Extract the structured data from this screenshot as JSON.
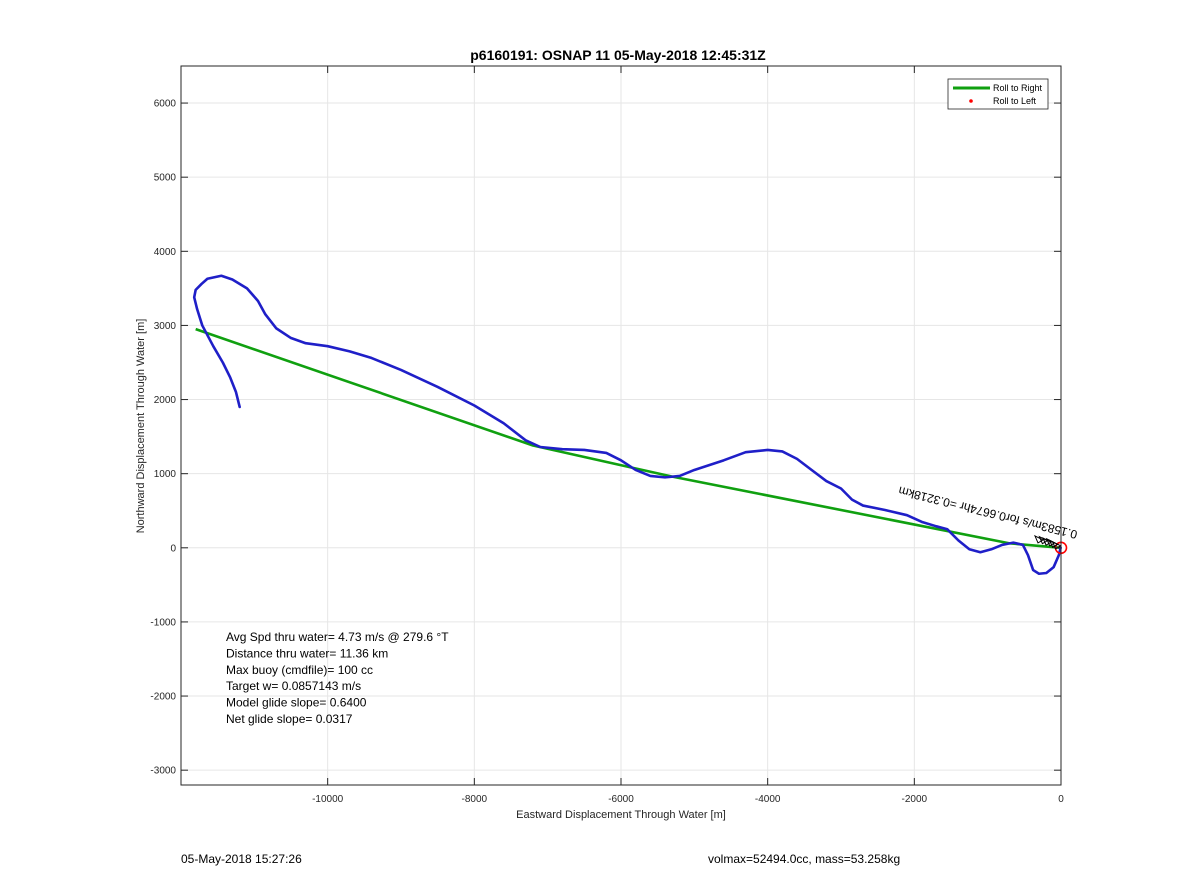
{
  "chart_data": {
    "type": "line",
    "title": "p6160191: OSNAP 11 05-May-2018 12:45:31Z",
    "xlabel": "Eastward Displacement Through Water [m]",
    "ylabel": "Northward Displacement Through Water [m]",
    "xlim": [
      -12000,
      0
    ],
    "ylim": [
      -3200,
      6500
    ],
    "xticks": [
      -10000,
      -8000,
      -6000,
      -4000,
      -2000,
      0
    ],
    "yticks": [
      -3000,
      -2000,
      -1000,
      0,
      1000,
      2000,
      3000,
      4000,
      5000,
      6000
    ],
    "grid": true,
    "legend": {
      "placement": "top-right",
      "entries": [
        {
          "label": "Roll to Right",
          "color": "#10a010",
          "style": "line"
        },
        {
          "label": "Roll to Left",
          "color": "#ff0000",
          "style": "dot"
        }
      ]
    },
    "series": [
      {
        "name": "",
        "color": "#1f1fc8",
        "points": [
          [
            -11200,
            1900
          ],
          [
            -11250,
            2100
          ],
          [
            -11330,
            2300
          ],
          [
            -11430,
            2500
          ],
          [
            -11560,
            2720
          ],
          [
            -11710,
            3000
          ],
          [
            -11780,
            3220
          ],
          [
            -11820,
            3380
          ],
          [
            -11800,
            3480
          ],
          [
            -11720,
            3560
          ],
          [
            -11640,
            3630
          ],
          [
            -11450,
            3670
          ],
          [
            -11300,
            3620
          ],
          [
            -11100,
            3500
          ],
          [
            -10950,
            3330
          ],
          [
            -10850,
            3150
          ],
          [
            -10700,
            2960
          ],
          [
            -10500,
            2830
          ],
          [
            -10300,
            2760
          ],
          [
            -10000,
            2720
          ],
          [
            -9700,
            2650
          ],
          [
            -9400,
            2560
          ],
          [
            -9000,
            2400
          ],
          [
            -8500,
            2170
          ],
          [
            -8000,
            1920
          ],
          [
            -7600,
            1680
          ],
          [
            -7300,
            1450
          ],
          [
            -7100,
            1360
          ],
          [
            -6800,
            1330
          ],
          [
            -6500,
            1320
          ],
          [
            -6200,
            1280
          ],
          [
            -6000,
            1180
          ],
          [
            -5800,
            1050
          ],
          [
            -5600,
            970
          ],
          [
            -5400,
            950
          ],
          [
            -5200,
            970
          ],
          [
            -5000,
            1050
          ],
          [
            -4600,
            1180
          ],
          [
            -4300,
            1290
          ],
          [
            -4000,
            1320
          ],
          [
            -3800,
            1300
          ],
          [
            -3600,
            1200
          ],
          [
            -3400,
            1050
          ],
          [
            -3200,
            900
          ],
          [
            -3000,
            800
          ],
          [
            -2850,
            650
          ],
          [
            -2700,
            570
          ],
          [
            -2400,
            510
          ],
          [
            -2100,
            440
          ],
          [
            -1900,
            350
          ],
          [
            -1700,
            290
          ],
          [
            -1550,
            250
          ],
          [
            -1400,
            100
          ],
          [
            -1250,
            -20
          ],
          [
            -1100,
            -60
          ],
          [
            -950,
            -20
          ],
          [
            -800,
            40
          ],
          [
            -650,
            70
          ],
          [
            -520,
            40
          ],
          [
            -450,
            -100
          ],
          [
            -380,
            -300
          ],
          [
            -300,
            -350
          ],
          [
            -200,
            -340
          ],
          [
            -100,
            -260
          ],
          [
            -30,
            -100
          ],
          [
            -5,
            0
          ]
        ]
      },
      {
        "name": "Roll to Right",
        "color": "#10a010",
        "points": [
          [
            -11800,
            2950
          ],
          [
            -7200,
            1380
          ],
          [
            -5300,
            960
          ],
          [
            -700,
            60
          ],
          [
            0,
            0
          ]
        ]
      }
    ],
    "origin_marker_color": "#ff0000",
    "annotations": [
      {
        "text": "0.1583m/s for0.6674hr =0.3218km",
        "x": -2700,
        "y": 1050
      }
    ],
    "stats_text": [
      "Avg Spd thru water=  4.73 m/s @ 279.6 °T",
      "Distance thru water= 11.36 km",
      "Max buoy (cmdfile)= 100 cc",
      "Target w= 0.0857143 m/s",
      "Model glide slope= 0.6400",
      "Net glide slope= 0.0317"
    ]
  },
  "footer": {
    "left": "05-May-2018 15:27:26",
    "right": "volmax=52494.0cc, mass=53.258kg"
  }
}
